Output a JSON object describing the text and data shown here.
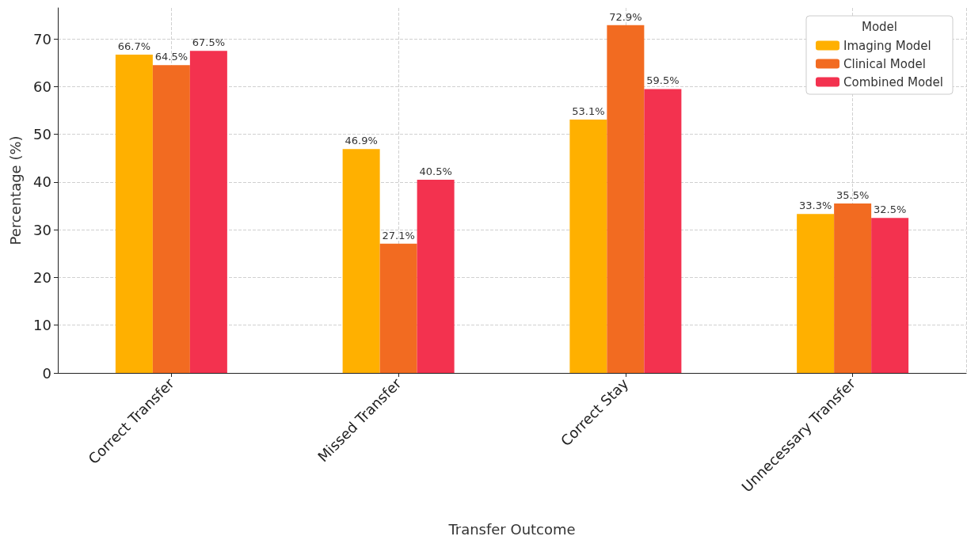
{
  "chart_data": {
    "type": "bar",
    "xlabel": "Transfer Outcome",
    "ylabel": "Percentage (%)",
    "legend_title": "Model",
    "categories": [
      "Correct Transfer",
      "Missed Transfer",
      "Correct Stay",
      "Unnecessary Transfer"
    ],
    "series": [
      {
        "name": "Imaging Model",
        "color": "#ffb000",
        "values": [
          66.7,
          46.9,
          53.1,
          33.3
        ],
        "value_labels": [
          "66.7%",
          "46.9%",
          "53.1%",
          "33.3%"
        ]
      },
      {
        "name": "Clinical Model",
        "color": "#f26b21",
        "values": [
          64.5,
          27.1,
          72.9,
          35.5
        ],
        "value_labels": [
          "64.5%",
          "27.1%",
          "72.9%",
          "35.5%"
        ]
      },
      {
        "name": "Combined Model",
        "color": "#f3324f",
        "values": [
          67.5,
          40.5,
          59.5,
          32.5
        ],
        "value_labels": [
          "67.5%",
          "40.5%",
          "59.5%",
          "32.5%"
        ]
      }
    ],
    "ylim": [
      0,
      76.5
    ],
    "yticks": [
      0,
      10,
      20,
      30,
      40,
      50,
      60,
      70
    ],
    "grid": true,
    "legend": "top right"
  }
}
